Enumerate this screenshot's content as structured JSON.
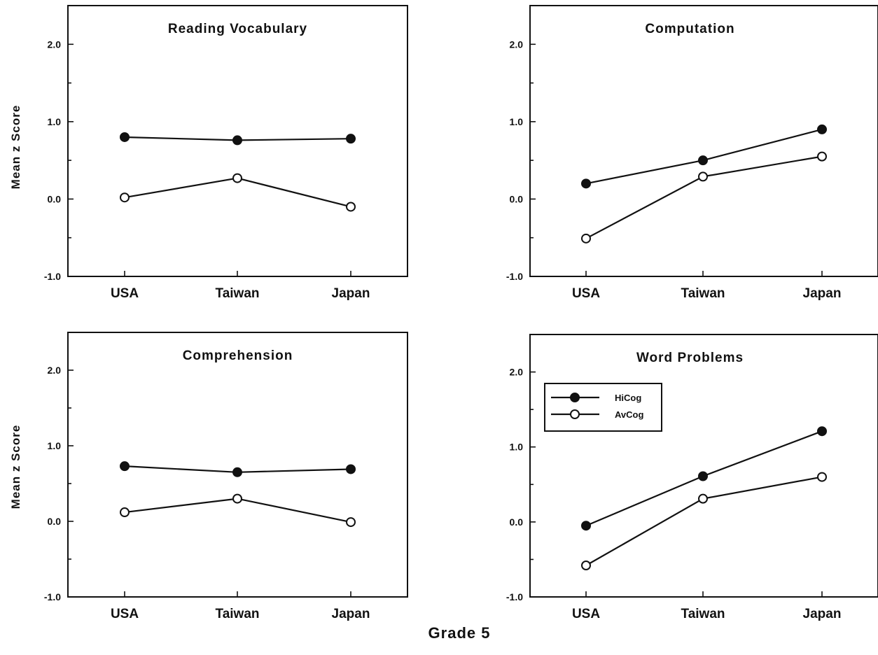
{
  "figure": {
    "caption": "Grade 5"
  },
  "chart_data": [
    {
      "type": "line",
      "title": "Reading  Vocabulary",
      "ylabel": "Mean  z  Score",
      "xlabel": "",
      "categories": [
        "USA",
        "Taiwan",
        "Japan"
      ],
      "ylim": [
        -1.0,
        2.5
      ],
      "yticks": [
        "-1.0",
        "0.0",
        "1.0",
        "2.0"
      ],
      "ytick_values": [
        -1.0,
        0.0,
        1.0,
        2.0
      ],
      "legend": null,
      "series": [
        {
          "name": "HiCog",
          "marker": "filled",
          "values": [
            0.8,
            0.76,
            0.78
          ]
        },
        {
          "name": "AvCog",
          "marker": "open",
          "values": [
            0.02,
            0.27,
            -0.1
          ]
        }
      ]
    },
    {
      "type": "line",
      "title": "Computation",
      "ylabel": "",
      "xlabel": "",
      "categories": [
        "USA",
        "Taiwan",
        "Japan"
      ],
      "ylim": [
        -1.0,
        2.5
      ],
      "yticks": [
        "-1.0",
        "0.0",
        "1.0",
        "2.0"
      ],
      "ytick_values": [
        -1.0,
        0.0,
        1.0,
        2.0
      ],
      "legend": null,
      "series": [
        {
          "name": "HiCog",
          "marker": "filled",
          "values": [
            0.2,
            0.5,
            0.9
          ]
        },
        {
          "name": "AvCog",
          "marker": "open",
          "values": [
            -0.51,
            0.29,
            0.55
          ]
        }
      ]
    },
    {
      "type": "line",
      "title": "Comprehension",
      "ylabel": "Mean  z  Score",
      "xlabel": "",
      "categories": [
        "USA",
        "Taiwan",
        "Japan"
      ],
      "ylim": [
        -1.0,
        2.5
      ],
      "yticks": [
        "-1.0",
        "0.0",
        "1.0",
        "2.0"
      ],
      "ytick_values": [
        -1.0,
        0.0,
        1.0,
        2.0
      ],
      "legend": null,
      "series": [
        {
          "name": "HiCog",
          "marker": "filled",
          "values": [
            0.73,
            0.65,
            0.69
          ]
        },
        {
          "name": "AvCog",
          "marker": "open",
          "values": [
            0.12,
            0.3,
            -0.01
          ]
        }
      ]
    },
    {
      "type": "line",
      "title": "Word  Problems",
      "ylabel": "",
      "xlabel": "",
      "categories": [
        "USA",
        "Taiwan",
        "Japan"
      ],
      "ylim": [
        -1.0,
        2.5
      ],
      "yticks": [
        "-1.0",
        "0.0",
        "1.0",
        "2.0"
      ],
      "ytick_values": [
        -1.0,
        0.0,
        1.0,
        2.0
      ],
      "legend": {
        "placement": "upper-left",
        "entries": [
          "HiCog",
          "AvCog"
        ]
      },
      "series": [
        {
          "name": "HiCog",
          "marker": "filled",
          "values": [
            -0.05,
            0.61,
            1.21
          ]
        },
        {
          "name": "AvCog",
          "marker": "open",
          "values": [
            -0.58,
            0.31,
            0.6
          ]
        }
      ]
    }
  ]
}
